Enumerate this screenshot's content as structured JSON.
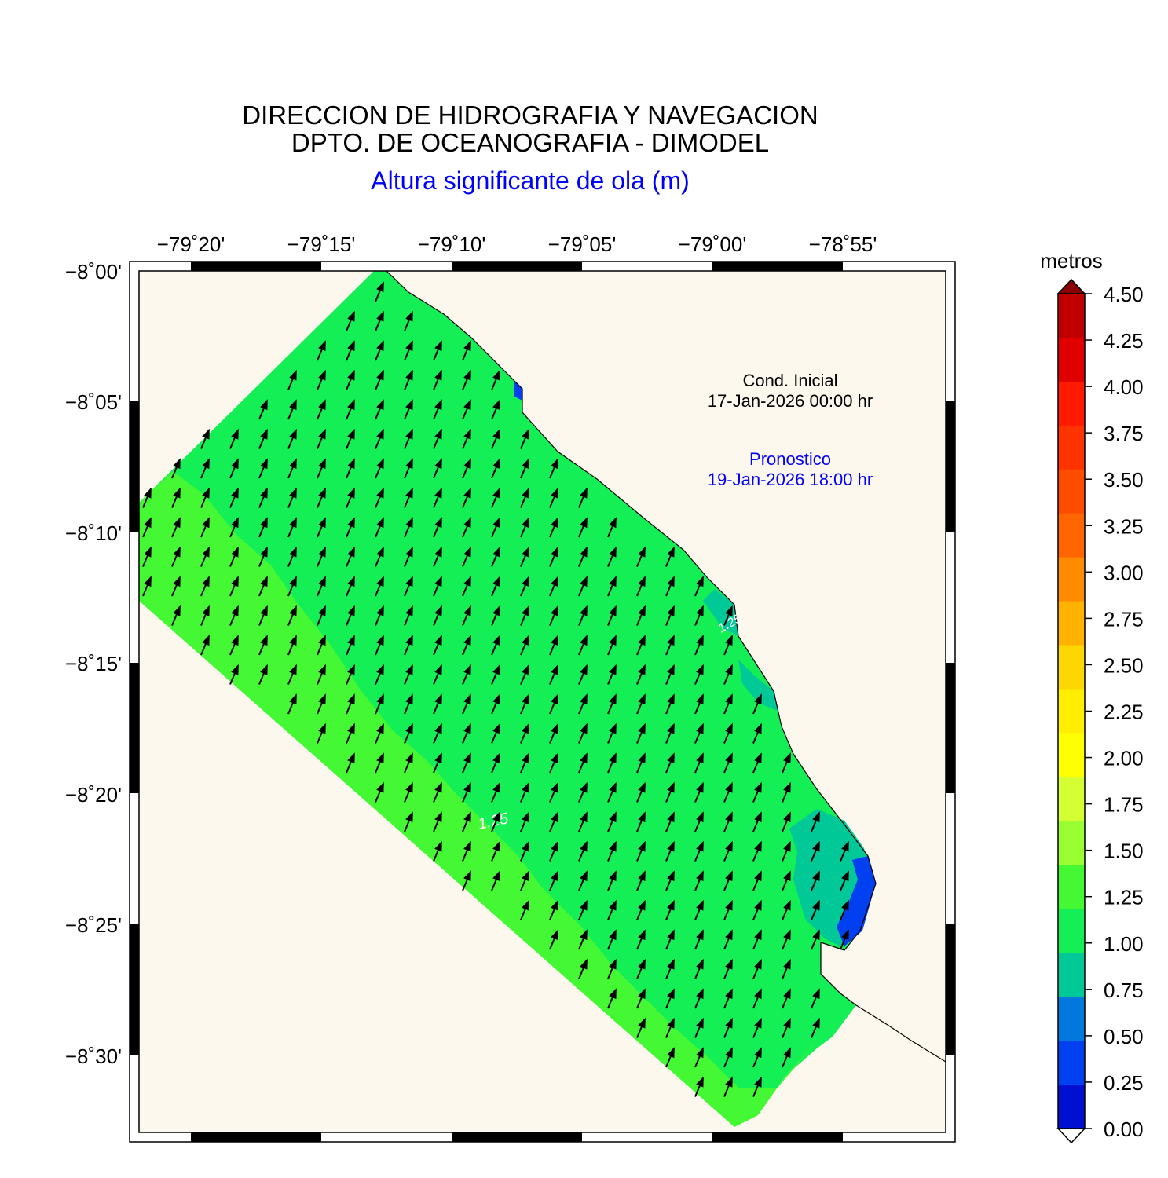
{
  "header": {
    "title_line1": "DIRECCION DE HIDROGRAFIA Y NAVEGACION",
    "title_line2": "DPTO. DE OCEANOGRAFIA - DIMODEL",
    "subtitle": "Altura significante de ola (m)"
  },
  "annotations": {
    "initial_label": "Cond. Inicial",
    "initial_time": "17-Jan-2026 00:00 hr",
    "forecast_label": "Pronostico",
    "forecast_time": "19-Jan-2026 18:00 hr"
  },
  "map": {
    "lon_ticks": [
      "−79˚20'",
      "−79˚15'",
      "−79˚10'",
      "−79˚05'",
      "−79˚00'",
      "−78˚55'"
    ],
    "lat_ticks": [
      "−8˚00'",
      "−8˚05'",
      "−8˚10'",
      "−8˚15'",
      "−8˚20'",
      "−8˚25'",
      "−8˚30'"
    ],
    "contour_labels": [
      "1.25",
      "1.25"
    ],
    "land_color": "#fdf8ee",
    "wave_direction": "toward north-northeast"
  },
  "colorbar": {
    "unit_label": "metros",
    "values": [
      "4.50",
      "4.25",
      "4.00",
      "3.75",
      "3.50",
      "3.25",
      "3.00",
      "2.75",
      "2.50",
      "2.25",
      "2.00",
      "1.75",
      "1.50",
      "1.25",
      "1.00",
      "0.75",
      "0.50",
      "0.25",
      "0.00"
    ],
    "colors_top_to_bottom": [
      "#c00000",
      "#e00000",
      "#ff1a00",
      "#ff3300",
      "#ff4d00",
      "#ff6600",
      "#ff8c00",
      "#ffb300",
      "#ffd700",
      "#ffee00",
      "#ffff00",
      "#d4ff33",
      "#99ff33",
      "#44f833",
      "#14ef55",
      "#00c896",
      "#0078dc",
      "#0040f0",
      "#0010d0"
    ],
    "over_color": "#8b0000",
    "under_color": "#ffffff"
  }
}
